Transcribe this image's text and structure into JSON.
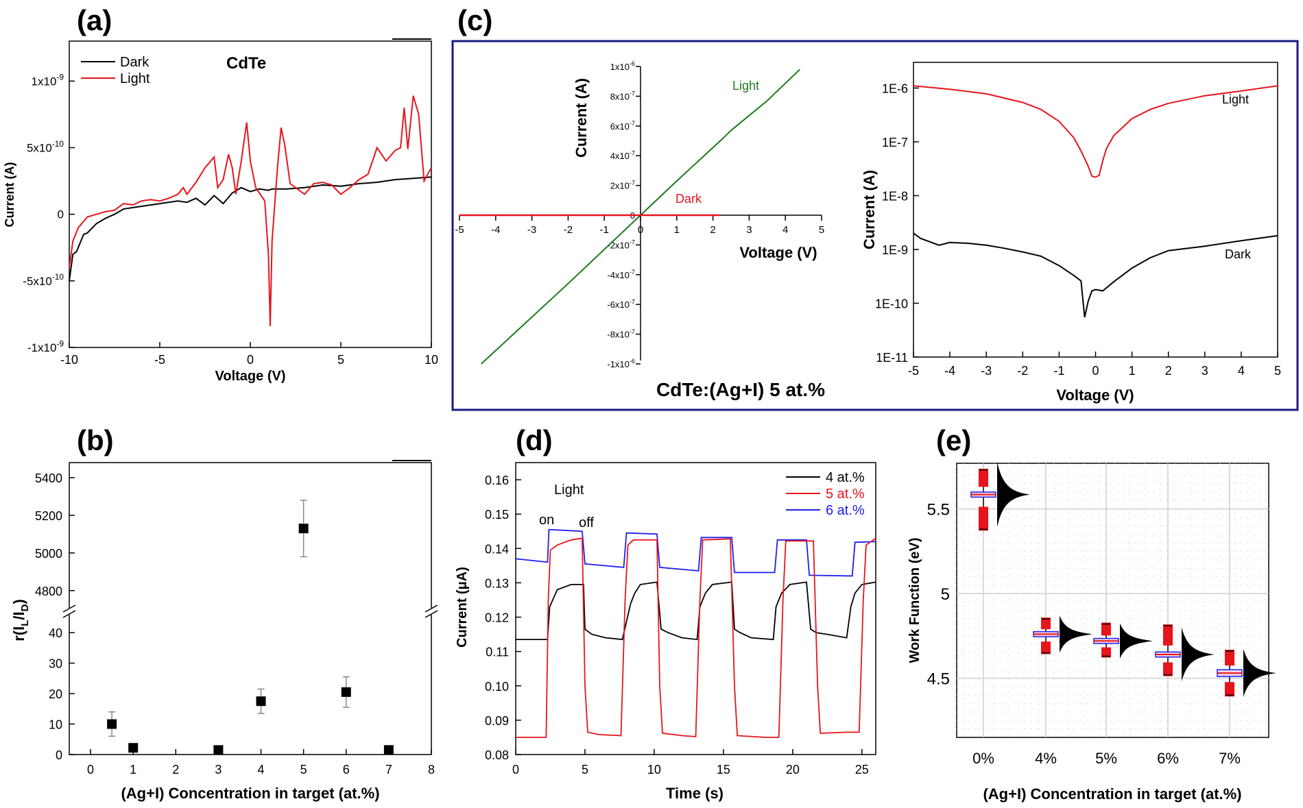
{
  "panels": {
    "a": {
      "letter": "(a)",
      "title": "CdTe",
      "xlabel": "Voltage (V)",
      "ylabel": "Current (A)",
      "xlim": [
        -10,
        10
      ],
      "ylim": [
        -1e-09,
        1.3e-09
      ],
      "xticks": [
        {
          "v": -10,
          "label": "-10"
        },
        {
          "v": -5,
          "label": "-5"
        },
        {
          "v": 0,
          "label": "0"
        },
        {
          "v": 5,
          "label": "5"
        },
        {
          "v": 10,
          "label": "10"
        }
      ],
      "yticks": [
        {
          "v": -1e-09,
          "base": "-1x10",
          "exp": "-9"
        },
        {
          "v": -5e-10,
          "base": "-5x10",
          "exp": "-10"
        },
        {
          "v": 0,
          "base": "0",
          "exp": ""
        },
        {
          "v": 5e-10,
          "base": "5x10",
          "exp": "-10"
        },
        {
          "v": 1e-09,
          "base": "1x10",
          "exp": "-9"
        }
      ],
      "legend": [
        {
          "name": "Dark",
          "color": "#000000"
        },
        {
          "name": "Light",
          "color": "#e8141b"
        }
      ]
    },
    "b": {
      "letter": "(b)",
      "xlabel": "(Ag+I) Concentration in target (at.%)",
      "ylabel_main": "r(I",
      "ylabel_sub1": "L",
      "ylabel_mid": "/I",
      "ylabel_sub2": "D",
      "ylabel_end": ")",
      "xticks": [
        "0",
        "1",
        "2",
        "3",
        "4",
        "5",
        "6",
        "7",
        "8"
      ],
      "yticks_low": [
        "0",
        "10",
        "20",
        "30",
        "40"
      ],
      "yticks_high": [
        "4800",
        "5000",
        "5200",
        "5400"
      ]
    },
    "c": {
      "letter": "(c)",
      "caption": "CdTe:(Ag+I) 5 at.%",
      "lin_xlabel": "Voltage (V)",
      "lin_ylabel": "Current (A)",
      "lin_xticks": [
        "-5",
        "-4",
        "-3",
        "-2",
        "-1",
        "0",
        "1",
        "2",
        "3",
        "4",
        "5"
      ],
      "lin_yticks": [
        {
          "v": 1e-06,
          "base": "1x10",
          "exp": "-6"
        },
        {
          "v": 8e-07,
          "base": "8x10",
          "exp": "-7"
        },
        {
          "v": 6e-07,
          "base": "6x10",
          "exp": "-7"
        },
        {
          "v": 4e-07,
          "base": "4x10",
          "exp": "-7"
        },
        {
          "v": 2e-07,
          "base": "2x10",
          "exp": "-7"
        },
        {
          "v": 0,
          "base": "0",
          "exp": ""
        },
        {
          "v": -2e-07,
          "base": "-2x10",
          "exp": "-7"
        },
        {
          "v": -4e-07,
          "base": "-4x10",
          "exp": "-7"
        },
        {
          "v": -6e-07,
          "base": "-6x10",
          "exp": "-7"
        },
        {
          "v": -8e-07,
          "base": "-8x10",
          "exp": "-7"
        },
        {
          "v": -1e-06,
          "base": "-1x10",
          "exp": "-6"
        }
      ],
      "lin_light_label": "Light",
      "lin_dark_label": "Dark",
      "log_xlabel": "Voltage (V)",
      "log_ylabel": "Current (A)",
      "log_xticks": [
        "-5",
        "-4",
        "-3",
        "-2",
        "-1",
        "0",
        "1",
        "2",
        "3",
        "4",
        "5"
      ],
      "log_yticks": [
        "1E-6",
        "1E-7",
        "1E-8",
        "1E-9",
        "1E-10",
        "1E-11"
      ],
      "log_light_label": "Light",
      "log_dark_label": "Dark"
    },
    "d": {
      "letter": "(d)",
      "xlabel": "Time (s)",
      "ylabel": "Current (μA)",
      "xticks": [
        "0",
        "5",
        "10",
        "15",
        "20",
        "25"
      ],
      "yticks": [
        "0.08",
        "0.09",
        "0.10",
        "0.11",
        "0.12",
        "0.13",
        "0.14",
        "0.15",
        "0.16"
      ],
      "annot_light": "Light",
      "annot_on": "on",
      "annot_off": "off",
      "legend": [
        {
          "name": "4 at.%",
          "color": "#000000"
        },
        {
          "name": "5 at.%",
          "color": "#e8141b"
        },
        {
          "name": "6 at.%",
          "color": "#1d1df0"
        }
      ]
    },
    "e": {
      "letter": "(e)",
      "xlabel": "(Ag+I) Concentration in target (at.%)",
      "ylabel": "Work Function (eV)",
      "xticks": [
        "0%",
        "4%",
        "5%",
        "6%",
        "7%"
      ],
      "yticks": [
        "4.5",
        "5",
        "5.5"
      ]
    }
  },
  "chart_data": [
    {
      "type": "line",
      "panel": "a",
      "title": "CdTe",
      "xlabel": "Voltage (V)",
      "ylabel": "Current (A)",
      "xlim": [
        -10,
        10
      ],
      "ylim": [
        -1e-09,
        1.3e-09
      ],
      "legend": "top-left",
      "series": [
        {
          "name": "Dark",
          "color": "#000000",
          "x": [
            -10,
            -9.8,
            -9.6,
            -9.2,
            -9,
            -8.5,
            -8,
            -7.5,
            -7,
            -6,
            -5,
            -4,
            -3.5,
            -3,
            -2.5,
            -2,
            -1.5,
            -1,
            -0.5,
            0,
            0.5,
            1,
            1.2,
            1.5,
            2,
            3,
            4,
            5,
            6,
            7,
            8,
            9,
            10
          ],
          "y": [
            -5e-10,
            -3e-10,
            -2.8e-10,
            -1.5e-10,
            -1.4e-10,
            -7e-11,
            -3e-11,
            0,
            4e-11,
            6e-11,
            8e-11,
            1e-10,
            9e-11,
            1.2e-10,
            7e-11,
            1.4e-10,
            8e-11,
            1.6e-10,
            2e-10,
            1.7e-10,
            1.9e-10,
            1.8e-10,
            1.9e-10,
            1.9e-10,
            1.9e-10,
            2e-10,
            2.2e-10,
            2.1e-10,
            2.3e-10,
            2.4e-10,
            2.6e-10,
            2.7e-10,
            2.8e-10
          ]
        },
        {
          "name": "Light",
          "color": "#e8141b",
          "x": [
            -10,
            -9.8,
            -9.5,
            -9,
            -8.5,
            -8,
            -7.5,
            -7,
            -6.5,
            -6,
            -5.5,
            -5,
            -4.5,
            -4,
            -3.7,
            -3.5,
            -3,
            -2.5,
            -2,
            -1.8,
            -1.5,
            -1.2,
            -1,
            -0.8,
            -0.5,
            -0.2,
            0,
            0.3,
            0.8,
            1,
            1.1,
            1.2,
            1.5,
            1.7,
            1.9,
            2.2,
            2.5,
            3,
            3.5,
            4,
            4.5,
            5,
            5.5,
            6,
            6.5,
            7,
            7.5,
            8,
            8.3,
            8.5,
            8.7,
            9,
            9.3,
            9.6,
            10
          ],
          "y": [
            -4e-10,
            -2e-10,
            -1e-10,
            -2e-11,
            0,
            2e-11,
            3e-11,
            8e-11,
            7e-11,
            1e-10,
            1.1e-10,
            1e-10,
            1.2e-10,
            1.5e-10,
            2e-10,
            1.5e-10,
            2.4e-10,
            3.5e-10,
            4.3e-10,
            2e-10,
            2.6e-10,
            4.5e-10,
            3.5e-10,
            1.5e-10,
            4e-10,
            6.9e-10,
            4e-10,
            2e-10,
            1e-10,
            -3e-10,
            -8.4e-10,
            -2e-10,
            3.5e-10,
            6.5e-10,
            5.2e-10,
            2.3e-10,
            2e-10,
            1.5e-10,
            2.3e-10,
            2.4e-10,
            2.2e-10,
            1.5e-10,
            2e-10,
            2.6e-10,
            3e-10,
            5e-10,
            4e-10,
            4.8e-10,
            5e-10,
            8e-10,
            4.9e-10,
            8.9e-10,
            7.5e-10,
            2.5e-10,
            3.5e-10
          ]
        }
      ]
    },
    {
      "type": "scatter",
      "panel": "b",
      "xlabel": "(Ag+I) Concentration in target (at.%)",
      "ylabel": "r(IL/ID)",
      "xlim": [
        -0.5,
        8
      ],
      "axis_break": true,
      "ylim_low": [
        0,
        47
      ],
      "ylim_high": [
        4690,
        5480
      ],
      "points": [
        {
          "x": 0.5,
          "y": 10,
          "err": 4
        },
        {
          "x": 1,
          "y": 2.2,
          "err": 0
        },
        {
          "x": 3,
          "y": 1.5,
          "err": 0
        },
        {
          "x": 4,
          "y": 17.5,
          "err": 4
        },
        {
          "x": 5,
          "y": 5130,
          "err": 150
        },
        {
          "x": 6,
          "y": 20.5,
          "err": 5
        },
        {
          "x": 7,
          "y": 1.5,
          "err": 0
        }
      ]
    },
    {
      "type": "line",
      "panel": "c-linear",
      "xlabel": "Voltage (V)",
      "ylabel": "Current (A)",
      "xlim": [
        -5,
        5
      ],
      "ylim": [
        -1e-06,
        1e-06
      ],
      "series": [
        {
          "name": "Light",
          "color": "#1c7a1c",
          "x": [
            -4.4,
            -2,
            0,
            1,
            2.2,
            2.25,
            2.5,
            2.8,
            3.5,
            4.4
          ],
          "y": [
            -1e-06,
            -4.6e-07,
            0,
            2.3e-07,
            5e-07,
            5.1e-07,
            5.7e-07,
            6.3e-07,
            7.7e-07,
            9.8e-07
          ]
        },
        {
          "name": "Dark",
          "color": "#e8141b",
          "x": [
            -5,
            -2,
            0,
            2,
            2.2
          ],
          "y": [
            0,
            0,
            0,
            0,
            0
          ]
        }
      ]
    },
    {
      "type": "line",
      "panel": "c-log",
      "xlabel": "Voltage (V)",
      "ylabel": "Current (A)",
      "xlim": [
        -5,
        5
      ],
      "ylim": [
        1e-11,
        3e-06
      ],
      "yscale": "log",
      "series": [
        {
          "name": "Light",
          "color": "#e8141b",
          "x": [
            -5,
            -4,
            -3,
            -2,
            -1.5,
            -1,
            -0.6,
            -0.4,
            -0.2,
            -0.1,
            0,
            0.1,
            0.2,
            0.3,
            0.5,
            1,
            1.5,
            2,
            3,
            4,
            5
          ],
          "y": [
            1.1e-06,
            9.5e-07,
            7.8e-07,
            5.4e-07,
            4e-07,
            2.4e-07,
            1.2e-07,
            6.8e-08,
            3.5e-08,
            2.3e-08,
            2.2e-08,
            2.4e-08,
            4.5e-08,
            7.5e-08,
            1.3e-07,
            2.7e-07,
            4e-07,
            5.2e-07,
            7.2e-07,
            8.8e-07,
            1.1e-06
          ]
        },
        {
          "name": "Dark",
          "color": "#000000",
          "x": [
            -5,
            -4.8,
            -4.5,
            -4.3,
            -4,
            -3.5,
            -3,
            -2.5,
            -2,
            -1.5,
            -1,
            -0.6,
            -0.4,
            -0.3,
            -0.2,
            -0.1,
            0,
            0.2,
            0.5,
            1,
            1.5,
            2,
            3,
            4,
            5
          ],
          "y": [
            2e-09,
            1.6e-09,
            1.35e-09,
            1.2e-09,
            1.35e-09,
            1.3e-09,
            1.2e-09,
            1.05e-09,
            9e-10,
            7.5e-10,
            5e-10,
            3.3e-10,
            2.6e-10,
            5.5e-11,
            1.1e-10,
            1.7e-10,
            1.8e-10,
            1.7e-10,
            2.5e-10,
            4.5e-10,
            7e-10,
            9.5e-10,
            1.15e-09,
            1.45e-09,
            1.8e-09
          ]
        }
      ]
    },
    {
      "type": "line",
      "panel": "d",
      "xlabel": "Time (s)",
      "ylabel": "Current (μA)",
      "xlim": [
        0,
        26
      ],
      "ylim": [
        0.08,
        0.165
      ],
      "legend": "top-right",
      "series": [
        {
          "name": "4 at.%",
          "color": "#000000",
          "x": [
            0,
            2.3,
            2.45,
            3,
            4,
            4.9,
            5,
            5.5,
            6.5,
            7.7,
            8.3,
            8.6,
            9,
            10.2,
            10.5,
            11,
            12,
            13.1,
            13.3,
            13.7,
            14.2,
            15.6,
            15.8,
            16.2,
            17,
            18.6,
            18.8,
            19.2,
            19.8,
            21,
            21.3,
            21.7,
            22.5,
            23.9,
            24.2,
            24.5,
            25,
            26
          ],
          "y": [
            0.1135,
            0.1135,
            0.123,
            0.128,
            0.1295,
            0.1295,
            0.1165,
            0.115,
            0.114,
            0.1135,
            0.124,
            0.127,
            0.1295,
            0.1302,
            0.1165,
            0.1155,
            0.114,
            0.1135,
            0.123,
            0.127,
            0.1295,
            0.1302,
            0.1165,
            0.1155,
            0.114,
            0.1135,
            0.123,
            0.127,
            0.1295,
            0.1302,
            0.1165,
            0.1155,
            0.115,
            0.114,
            0.123,
            0.127,
            0.1295,
            0.1302
          ]
        },
        {
          "name": "5 at.%",
          "color": "#e8141b",
          "x": [
            0,
            2.2,
            2.35,
            2.5,
            3,
            4,
            4.8,
            5,
            5.2,
            6,
            7.6,
            7.9,
            8.1,
            8.5,
            10.2,
            10.4,
            10.6,
            12,
            13,
            13.3,
            13.5,
            15.5,
            15.8,
            16,
            18,
            19,
            19.3,
            19.5,
            21,
            21.5,
            21.8,
            22,
            24,
            24.8,
            25.1,
            25.3,
            26
          ],
          "y": [
            0.085,
            0.085,
            0.125,
            0.1395,
            0.141,
            0.1425,
            0.143,
            0.1,
            0.0865,
            0.0858,
            0.0855,
            0.125,
            0.141,
            0.1425,
            0.1425,
            0.1,
            0.0862,
            0.0855,
            0.0852,
            0.125,
            0.1425,
            0.1428,
            0.1,
            0.0855,
            0.085,
            0.085,
            0.125,
            0.1422,
            0.1422,
            0.1422,
            0.1,
            0.0862,
            0.0865,
            0.0865,
            0.125,
            0.141,
            0.143
          ]
        },
        {
          "name": "6 at.%",
          "color": "#1d1df0",
          "x": [
            0,
            2.3,
            2.4,
            4.8,
            5,
            7.8,
            8,
            10.2,
            10.4,
            13.2,
            13.4,
            15.6,
            15.8,
            18.7,
            18.9,
            21,
            21.2,
            24.3,
            24.5,
            26
          ],
          "y": [
            0.137,
            0.136,
            0.1455,
            0.145,
            0.1355,
            0.1345,
            0.1445,
            0.1442,
            0.1345,
            0.1335,
            0.1432,
            0.1432,
            0.133,
            0.133,
            0.1425,
            0.1425,
            0.1322,
            0.132,
            0.1418,
            0.142
          ]
        }
      ]
    },
    {
      "type": "box",
      "panel": "e",
      "xlabel": "(Ag+I) Concentration in target (at.%)",
      "ylabel": "Work Function (eV)",
      "categories": [
        "0%",
        "4%",
        "5%",
        "6%",
        "7%"
      ],
      "ylim": [
        4.15,
        5.77
      ],
      "grid": true,
      "boxes": [
        {
          "category": "0%",
          "median": 5.585,
          "q1": 5.57,
          "q3": 5.6,
          "min": 5.38,
          "max": 5.73
        },
        {
          "category": "4%",
          "median": 4.76,
          "q1": 4.745,
          "q3": 4.775,
          "min": 4.65,
          "max": 4.85
        },
        {
          "category": "5%",
          "median": 4.72,
          "q1": 4.705,
          "q3": 4.735,
          "min": 4.63,
          "max": 4.82
        },
        {
          "category": "6%",
          "median": 4.64,
          "q1": 4.625,
          "q3": 4.655,
          "min": 4.52,
          "max": 4.81
        },
        {
          "category": "7%",
          "median": 4.53,
          "q1": 4.51,
          "q3": 4.55,
          "min": 4.4,
          "max": 4.66
        }
      ]
    }
  ]
}
